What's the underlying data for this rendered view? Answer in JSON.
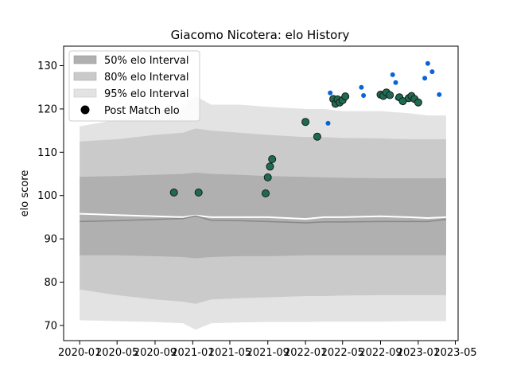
{
  "chart_data": {
    "type": "scatter",
    "title": "Giacomo Nicotera: elo History",
    "xlabel": "",
    "ylabel": "elo score",
    "x_tick_labels": [
      "2020-01",
      "2020-05",
      "2020-09",
      "2021-01",
      "2021-05",
      "2021-09",
      "2022-01",
      "2022-05",
      "2022-09",
      "2023-01",
      "2023-05"
    ],
    "x_ticks": [
      "2020-01-01",
      "2020-05-01",
      "2020-09-01",
      "2021-01-01",
      "2021-05-01",
      "2021-09-01",
      "2022-01-01",
      "2022-05-01",
      "2022-09-01",
      "2023-01-01",
      "2023-05-01"
    ],
    "xlim": [
      "2019-11-10",
      "2023-05-10"
    ],
    "ylim": [
      66.5,
      134.5
    ],
    "y_ticks": [
      70,
      80,
      90,
      100,
      110,
      120,
      130
    ],
    "grid": false,
    "legend_position": "top-left",
    "legend": [
      {
        "label": "50% elo Interval",
        "color": "#b0b0b0"
      },
      {
        "label": "80% elo Interval",
        "color": "#cacaca"
      },
      {
        "label": "95% elo Interval",
        "color": "#e3e3e3"
      },
      {
        "label": "Post Match elo",
        "color": "#000000"
      }
    ],
    "colors": {
      "band_50": "#b0b0b0",
      "band_80": "#cacaca",
      "band_95": "#e3e3e3",
      "median_line": "#888888",
      "mean_line": "#ffffff",
      "post_match_fill": "#1e6b53",
      "post_match_edge": "#1a1a1a",
      "blue_points": "#0b63d8"
    },
    "bands": {
      "x": [
        "2020-01-01",
        "2020-05-01",
        "2020-09-01",
        "2020-12-01",
        "2021-01-10",
        "2021-03-01",
        "2021-06-01",
        "2021-09-01",
        "2022-01-01",
        "2022-03-01",
        "2022-05-01",
        "2022-09-01",
        "2022-12-01",
        "2023-02-01",
        "2023-04-01"
      ],
      "p95_upper": [
        116.0,
        117.5,
        119.5,
        120.5,
        123.0,
        121.0,
        121.0,
        120.5,
        120.0,
        120.0,
        119.5,
        119.5,
        119.0,
        118.5,
        118.5
      ],
      "p95_lower": [
        71.2,
        71.0,
        70.8,
        70.5,
        69.0,
        70.5,
        70.7,
        70.8,
        70.8,
        70.9,
        70.9,
        70.9,
        71.0,
        71.0,
        71.0
      ],
      "p80_upper": [
        112.5,
        113.0,
        114.0,
        114.5,
        115.5,
        115.0,
        114.5,
        114.0,
        113.5,
        113.5,
        113.3,
        113.2,
        113.0,
        113.0,
        113.0
      ],
      "p80_lower": [
        78.3,
        77.0,
        76.0,
        75.5,
        75.0,
        76.0,
        76.3,
        76.5,
        76.8,
        76.8,
        76.9,
        77.0,
        77.0,
        77.0,
        77.0
      ],
      "p50_upper": [
        104.3,
        104.5,
        104.8,
        105.0,
        105.3,
        105.0,
        104.8,
        104.5,
        104.3,
        104.2,
        104.1,
        104.0,
        104.0,
        104.0,
        104.0
      ],
      "p50_lower": [
        86.2,
        86.2,
        86.0,
        85.8,
        85.5,
        85.8,
        86.0,
        86.0,
        86.2,
        86.2,
        86.2,
        86.2,
        86.2,
        86.2,
        86.2
      ],
      "median": [
        94.0,
        94.2,
        94.5,
        94.7,
        95.3,
        94.3,
        94.2,
        94.0,
        93.7,
        93.9,
        93.9,
        94.0,
        94.0,
        94.0,
        94.5
      ],
      "mean": [
        95.8,
        95.5,
        95.2,
        95.0,
        95.4,
        95.0,
        95.0,
        95.0,
        94.6,
        95.0,
        95.0,
        95.2,
        95.0,
        94.8,
        95.0
      ]
    },
    "series": [
      {
        "name": "Post Match elo",
        "style": "green-with-black-edge",
        "points": [
          {
            "x": "2020-11-01",
            "y": 100.7
          },
          {
            "x": "2021-01-20",
            "y": 100.7
          },
          {
            "x": "2021-08-25",
            "y": 100.5
          },
          {
            "x": "2021-09-01",
            "y": 104.2
          },
          {
            "x": "2021-09-08",
            "y": 106.7
          },
          {
            "x": "2021-09-15",
            "y": 108.4
          },
          {
            "x": "2022-01-01",
            "y": 117.0
          },
          {
            "x": "2022-02-08",
            "y": 113.6
          },
          {
            "x": "2022-04-01",
            "y": 122.3
          },
          {
            "x": "2022-04-08",
            "y": 121.2
          },
          {
            "x": "2022-04-15",
            "y": 122.2
          },
          {
            "x": "2022-04-22",
            "y": 121.5
          },
          {
            "x": "2022-05-01",
            "y": 122.0
          },
          {
            "x": "2022-05-10",
            "y": 122.9
          },
          {
            "x": "2022-09-01",
            "y": 123.3
          },
          {
            "x": "2022-09-10",
            "y": 123.0
          },
          {
            "x": "2022-09-20",
            "y": 123.8
          },
          {
            "x": "2022-10-01",
            "y": 123.2
          },
          {
            "x": "2022-11-01",
            "y": 122.7
          },
          {
            "x": "2022-11-12",
            "y": 121.8
          },
          {
            "x": "2022-12-01",
            "y": 122.5
          },
          {
            "x": "2022-12-10",
            "y": 123.0
          },
          {
            "x": "2022-12-20",
            "y": 122.3
          },
          {
            "x": "2023-01-01",
            "y": 121.5
          }
        ]
      },
      {
        "style": "blue-small",
        "points": [
          {
            "x": "2022-03-15",
            "y": 116.7
          },
          {
            "x": "2022-03-22",
            "y": 123.7
          },
          {
            "x": "2022-07-01",
            "y": 125.0
          },
          {
            "x": "2022-07-08",
            "y": 123.1
          },
          {
            "x": "2022-10-10",
            "y": 127.9
          },
          {
            "x": "2022-10-20",
            "y": 126.1
          },
          {
            "x": "2022-10-25",
            "y": 122.5
          },
          {
            "x": "2023-01-22",
            "y": 127.1
          },
          {
            "x": "2023-02-01",
            "y": 130.5
          },
          {
            "x": "2023-02-15",
            "y": 128.6
          },
          {
            "x": "2023-03-10",
            "y": 123.3
          }
        ]
      }
    ]
  }
}
